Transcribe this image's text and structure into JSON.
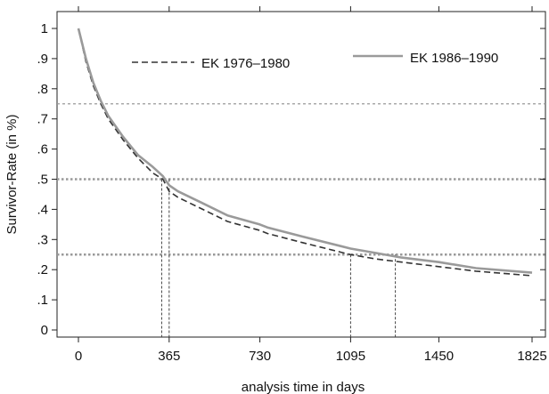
{
  "chart_data": {
    "type": "line",
    "title": "",
    "xlabel": "analysis time in days",
    "ylabel": "Survivor-Rate (in %)",
    "xlim": [
      0,
      1825
    ],
    "ylim": [
      0,
      1
    ],
    "x_ticks": [
      0,
      365,
      730,
      1095,
      1450,
      1825
    ],
    "x_tick_labels": [
      "0",
      "365",
      "730",
      "1095",
      "1450",
      "1825"
    ],
    "y_ticks": [
      0,
      0.1,
      0.2,
      0.3,
      0.4,
      0.5,
      0.6,
      0.7,
      0.8,
      0.9,
      1
    ],
    "y_tick_labels": [
      "0",
      ".1",
      ".2",
      ".3",
      ".4",
      ".5",
      ".6",
      ".7",
      ".8",
      ".9",
      "1"
    ],
    "grid": false,
    "legend_position": "top",
    "reference_lines": {
      "horizontal": [
        0.75,
        0.5,
        0.25
      ],
      "vertical_drops": [
        {
          "x": 335,
          "y": 0.5
        },
        {
          "x": 365,
          "y": 0.5
        },
        {
          "x": 1095,
          "y": 0.25
        },
        {
          "x": 1275,
          "y": 0.25
        }
      ]
    },
    "series": [
      {
        "name": "EK 1976–1980",
        "style": "dashed",
        "color": "#333333",
        "x": [
          0,
          30,
          60,
          90,
          120,
          180,
          240,
          300,
          340,
          365,
          400,
          500,
          600,
          730,
          760,
          900,
          1095,
          1200,
          1300,
          1450,
          1600,
          1825
        ],
        "y": [
          1.0,
          0.89,
          0.81,
          0.75,
          0.7,
          0.63,
          0.57,
          0.52,
          0.5,
          0.46,
          0.44,
          0.4,
          0.36,
          0.33,
          0.32,
          0.29,
          0.25,
          0.235,
          0.225,
          0.21,
          0.195,
          0.18
        ]
      },
      {
        "name": "EK 1986–1990",
        "style": "solid",
        "color": "#9a9a9a",
        "x": [
          0,
          30,
          60,
          90,
          120,
          180,
          240,
          300,
          340,
          365,
          400,
          500,
          600,
          730,
          760,
          900,
          1095,
          1200,
          1300,
          1450,
          1600,
          1825
        ],
        "y": [
          1.0,
          0.9,
          0.82,
          0.76,
          0.71,
          0.64,
          0.58,
          0.54,
          0.51,
          0.48,
          0.46,
          0.42,
          0.38,
          0.35,
          0.34,
          0.31,
          0.27,
          0.255,
          0.24,
          0.225,
          0.205,
          0.19
        ]
      }
    ]
  }
}
